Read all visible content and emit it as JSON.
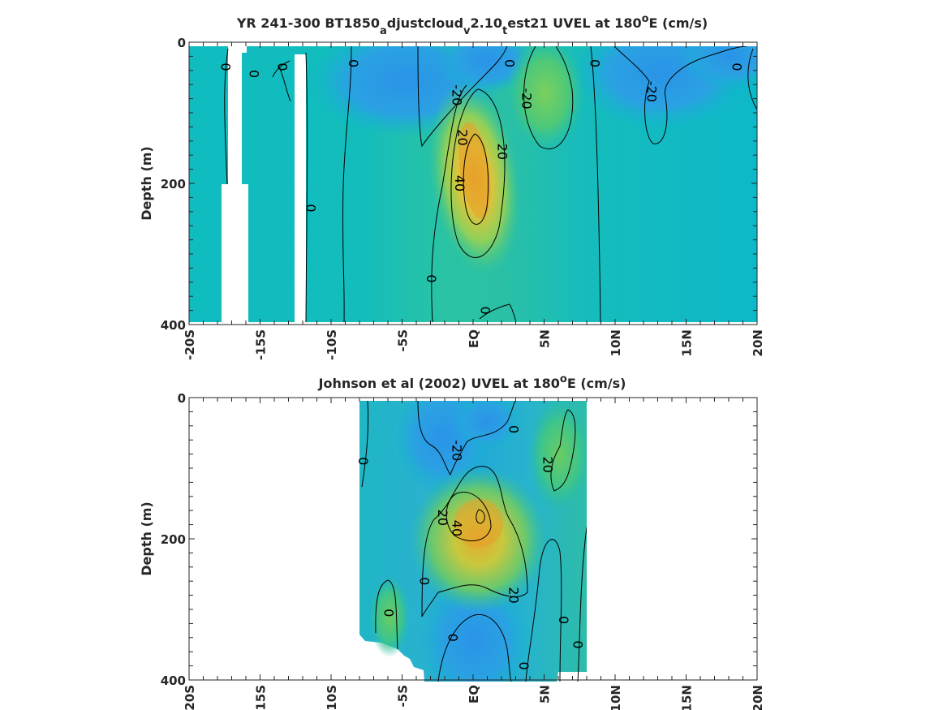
{
  "colors": {
    "deep_blue": "#2d9fe5",
    "teal": "#0fbcbf",
    "green": "#66cc66",
    "yellow": "#d6c43a",
    "orange": "#e8b42f",
    "contour": "#000000",
    "frame": "#262626"
  },
  "chart_data": [
    {
      "type": "heatmap",
      "title_main": "YR 241-300 BT1850",
      "title_sub1": "a",
      "title_mid1": "djustcloud",
      "title_sub2": "v",
      "title_mid2": "2.10",
      "title_sub3": "t",
      "title_mid3": "est21 UVEL at 180",
      "title_sup": "o",
      "title_end": "E (cm/s)",
      "ylabel": "Depth (m)",
      "xlabel": "",
      "xlim": [
        -20,
        20
      ],
      "ylim": [
        400,
        0
      ],
      "x_ticks": [
        -20,
        -15,
        -10,
        -5,
        0,
        5,
        10,
        15,
        20
      ],
      "x_tick_labels": [
        "-20S",
        "-15S",
        "-10S",
        "-5S",
        "EQ",
        "5N",
        "10N",
        "15N",
        "20N"
      ],
      "y_ticks": [
        0,
        200,
        400
      ],
      "y_tick_labels": [
        "0",
        "200",
        "400"
      ],
      "field_range": [
        -40,
        60
      ],
      "features": [
        {
          "kind": "core",
          "lon": 0,
          "depth": 190,
          "value": 50
        },
        {
          "kind": "core",
          "lon": 5,
          "depth": 90,
          "value": 30
        },
        {
          "kind": "core",
          "lon": -2,
          "depth": 40,
          "value": -25
        },
        {
          "kind": "core",
          "lon": 12,
          "depth": 60,
          "value": -28
        },
        {
          "kind": "core",
          "lon": 18,
          "depth": 40,
          "value": -18
        }
      ],
      "gaps": [
        [
          -17.5,
          -15.5
        ],
        [
          -12,
          -11
        ]
      ],
      "contour_labels": [
        {
          "text": "0",
          "lon": -17.5,
          "depth": 35
        },
        {
          "text": "0",
          "lon": -15.5,
          "depth": 45
        },
        {
          "text": "0",
          "lon": -13.5,
          "depth": 35
        },
        {
          "text": "0",
          "lon": -8.5,
          "depth": 30
        },
        {
          "text": "-20",
          "lon": -1.2,
          "depth": 75
        },
        {
          "text": "20",
          "lon": -0.8,
          "depth": 135
        },
        {
          "text": "20",
          "lon": 2,
          "depth": 155
        },
        {
          "text": "40",
          "lon": -1,
          "depth": 200
        },
        {
          "text": "-20",
          "lon": 3.7,
          "depth": 80
        },
        {
          "text": "0",
          "lon": 2.5,
          "depth": 30
        },
        {
          "text": "0",
          "lon": 8.5,
          "depth": 30
        },
        {
          "text": "-20",
          "lon": 12.5,
          "depth": 70
        },
        {
          "text": "0",
          "lon": 18.5,
          "depth": 35
        },
        {
          "text": "0",
          "lon": -11.5,
          "depth": 235
        },
        {
          "text": "0",
          "lon": -3,
          "depth": 335
        },
        {
          "text": "0",
          "lon": 0.8,
          "depth": 380
        }
      ]
    },
    {
      "type": "heatmap",
      "title_main": "Johnson et al (2002) UVEL at 180",
      "title_sup": "o",
      "title_end": "E (cm/s)",
      "ylabel": "Depth (m)",
      "xlabel": "",
      "xlim": [
        -20,
        20
      ],
      "ylim": [
        400,
        0
      ],
      "x_ticks": [
        -20,
        -15,
        -10,
        -5,
        0,
        5,
        10,
        15,
        20
      ],
      "x_tick_labels": [
        "-20S",
        "-15S",
        "-10S",
        "-5S",
        "EQ",
        "5N",
        "10N",
        "15N",
        "20N"
      ],
      "y_ticks": [
        0,
        200,
        400
      ],
      "y_tick_labels": [
        "0",
        "200",
        "400"
      ],
      "data_extent_lon": [
        -8,
        8
      ],
      "features": [
        {
          "kind": "core",
          "lon": 0.5,
          "depth": 170,
          "value": 55
        },
        {
          "kind": "core",
          "lon": 6,
          "depth": 80,
          "value": 25
        },
        {
          "kind": "core",
          "lon": -2.5,
          "depth": 50,
          "value": -30
        },
        {
          "kind": "core",
          "lon": -0.5,
          "depth": 330,
          "value": -15
        }
      ],
      "contour_labels": [
        {
          "text": "0",
          "lon": -7.8,
          "depth": 90
        },
        {
          "text": "-20",
          "lon": -1.2,
          "depth": 75
        },
        {
          "text": "0",
          "lon": 2.8,
          "depth": 45
        },
        {
          "text": "20",
          "lon": 5.2,
          "depth": 95
        },
        {
          "text": "20",
          "lon": -2.2,
          "depth": 170
        },
        {
          "text": "40",
          "lon": -1.2,
          "depth": 185
        },
        {
          "text": "0",
          "lon": -3.5,
          "depth": 260
        },
        {
          "text": "20",
          "lon": 2.8,
          "depth": 280
        },
        {
          "text": "0",
          "lon": -6,
          "depth": 305
        },
        {
          "text": "0",
          "lon": 6.3,
          "depth": 315
        },
        {
          "text": "0",
          "lon": -1.5,
          "depth": 340
        },
        {
          "text": "0",
          "lon": 7.3,
          "depth": 350
        },
        {
          "text": "0",
          "lon": 3.5,
          "depth": 380
        }
      ]
    }
  ]
}
